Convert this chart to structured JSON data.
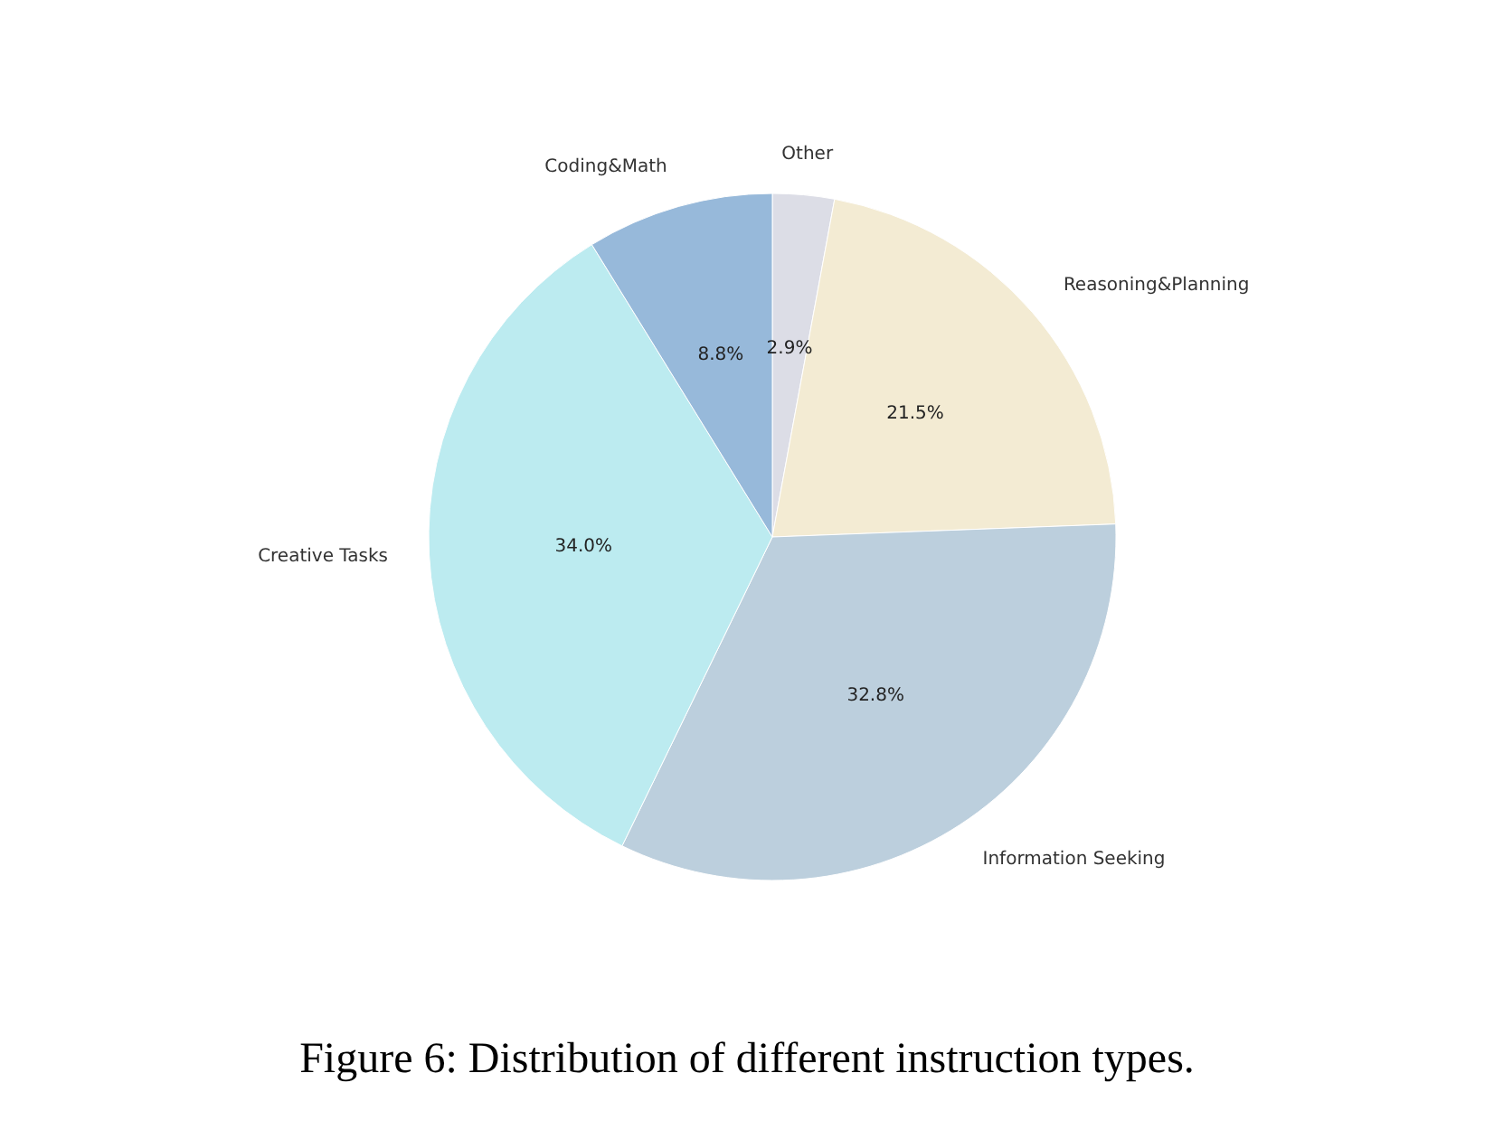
{
  "chart_data": {
    "type": "pie",
    "categories": [
      "Other",
      "Reasoning&Planning",
      "Information Seeking",
      "Creative Tasks",
      "Coding&Math"
    ],
    "values": [
      2.9,
      21.5,
      32.8,
      34.0,
      8.8
    ],
    "value_labels": [
      "2.9%",
      "21.5%",
      "32.8%",
      "34.0%",
      "8.8%"
    ],
    "colors": [
      "#dcdde6",
      "#f3ebd3",
      "#bccfdd",
      "#bcebf0",
      "#97b9da"
    ],
    "annotations": [
      "Figure 6: Distribution of different instruction types."
    ]
  }
}
